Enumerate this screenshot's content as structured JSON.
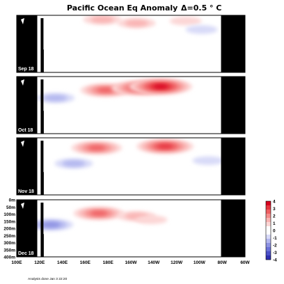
{
  "chart_data": {
    "type": "heatmap",
    "title": "Pacific Ocean Eq Anomaly",
    "contour_interval": "Δ=0.5 ° C",
    "x_ticks": [
      "100E",
      "120E",
      "140E",
      "160E",
      "180E",
      "160W",
      "140W",
      "120W",
      "100W",
      "80W",
      "60W"
    ],
    "y_ticks": [
      "0m",
      "50m",
      "100m",
      "150m",
      "200m",
      "250m",
      "300m",
      "350m",
      "400m"
    ],
    "ylim_m": [
      0,
      400
    ],
    "colorbar": {
      "ticks": [
        "4",
        "3",
        "2",
        "1",
        "0",
        "-1",
        "-2",
        "-3",
        "-4"
      ],
      "colors": [
        "#d8001f",
        "#e6353f",
        "#ef5f62",
        "#f58c8b",
        "#f9b3b2",
        "#fcd6d5",
        "#ffffff",
        "#ffffff",
        "#d8daf8",
        "#b3b7ef",
        "#8d92e3",
        "#6b72d8",
        "#4b50c8",
        "#2e2fb0"
      ]
    },
    "panels": [
      {
        "label": "Sep 18",
        "features": [
          {
            "lon": 175,
            "depth": 30,
            "anomaly": 1.5
          },
          {
            "lon": 205,
            "depth": 55,
            "anomaly": 1.5
          },
          {
            "lon": 248,
            "depth": 40,
            "anomaly": 1.0
          },
          {
            "lon": 262,
            "depth": 100,
            "anomaly": -1.0
          }
        ]
      },
      {
        "label": "Oct 18",
        "features": [
          {
            "lon": 178,
            "depth": 95,
            "anomaly": 2.5
          },
          {
            "lon": 208,
            "depth": 80,
            "anomaly": 3.0
          },
          {
            "lon": 226,
            "depth": 70,
            "anomaly": 3.5
          },
          {
            "lon": 134,
            "depth": 150,
            "anomaly": -1.5
          }
        ]
      },
      {
        "label": "Nov 18",
        "features": [
          {
            "lon": 170,
            "depth": 70,
            "anomaly": 2.5
          },
          {
            "lon": 230,
            "depth": 60,
            "anomaly": 3.0
          },
          {
            "lon": 150,
            "depth": 180,
            "anomaly": -1.5
          },
          {
            "lon": 268,
            "depth": 160,
            "anomaly": -1.0
          }
        ]
      },
      {
        "label": "Dec 18",
        "features": [
          {
            "lon": 172,
            "depth": 95,
            "anomaly": 2.5
          },
          {
            "lon": 205,
            "depth": 115,
            "anomaly": 1.5
          },
          {
            "lon": 218,
            "depth": 140,
            "anomaly": 1.0
          },
          {
            "lon": 130,
            "depth": 175,
            "anomaly": -2.0
          }
        ]
      }
    ]
  },
  "footer_note": "Analysis done Jan 3 22:20"
}
